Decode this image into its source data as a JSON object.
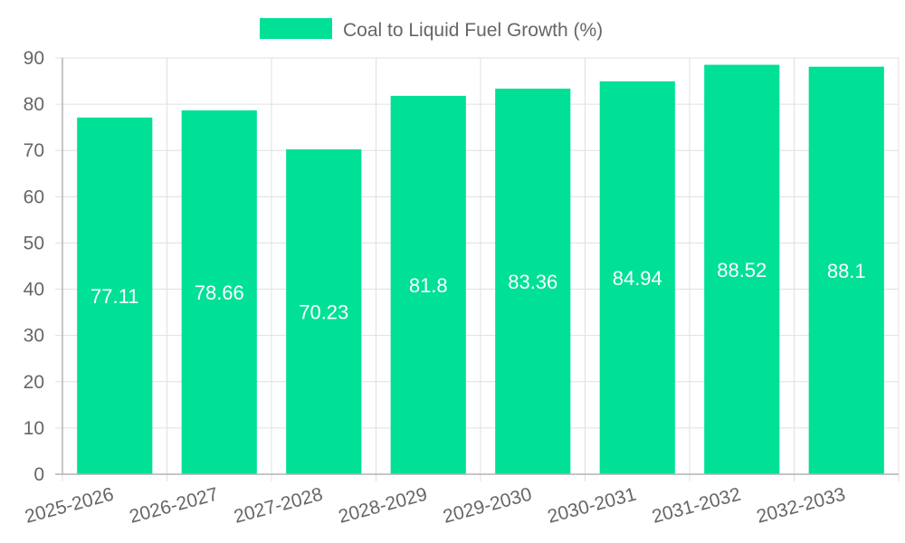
{
  "chart_data": {
    "type": "bar",
    "legend": "Coal to Liquid Fuel Growth (%)",
    "categories": [
      "2025-2026",
      "2026-2027",
      "2027-2028",
      "2028-2029",
      "2029-2030",
      "2030-2031",
      "2031-2032",
      "2032-2033"
    ],
    "series": [
      {
        "name": "Coal to Liquid Fuel Growth (%)",
        "values": [
          77.11,
          78.66,
          70.23,
          81.8,
          83.36,
          84.94,
          88.52,
          88.1
        ]
      }
    ],
    "data_labels": [
      "77.11",
      "78.66",
      "70.23",
      "81.8",
      "83.36",
      "84.94",
      "88.52",
      "88.1"
    ],
    "y_ticks": [
      "0",
      "10",
      "20",
      "30",
      "40",
      "50",
      "60",
      "70",
      "80",
      "90"
    ],
    "ylim": [
      0,
      90
    ],
    "grid": true,
    "legend_position": "top-center",
    "colors": {
      "bar": "#00e096",
      "grid": "#e0e0e0",
      "axis": "#b3b3b3",
      "text": "#666666"
    }
  }
}
